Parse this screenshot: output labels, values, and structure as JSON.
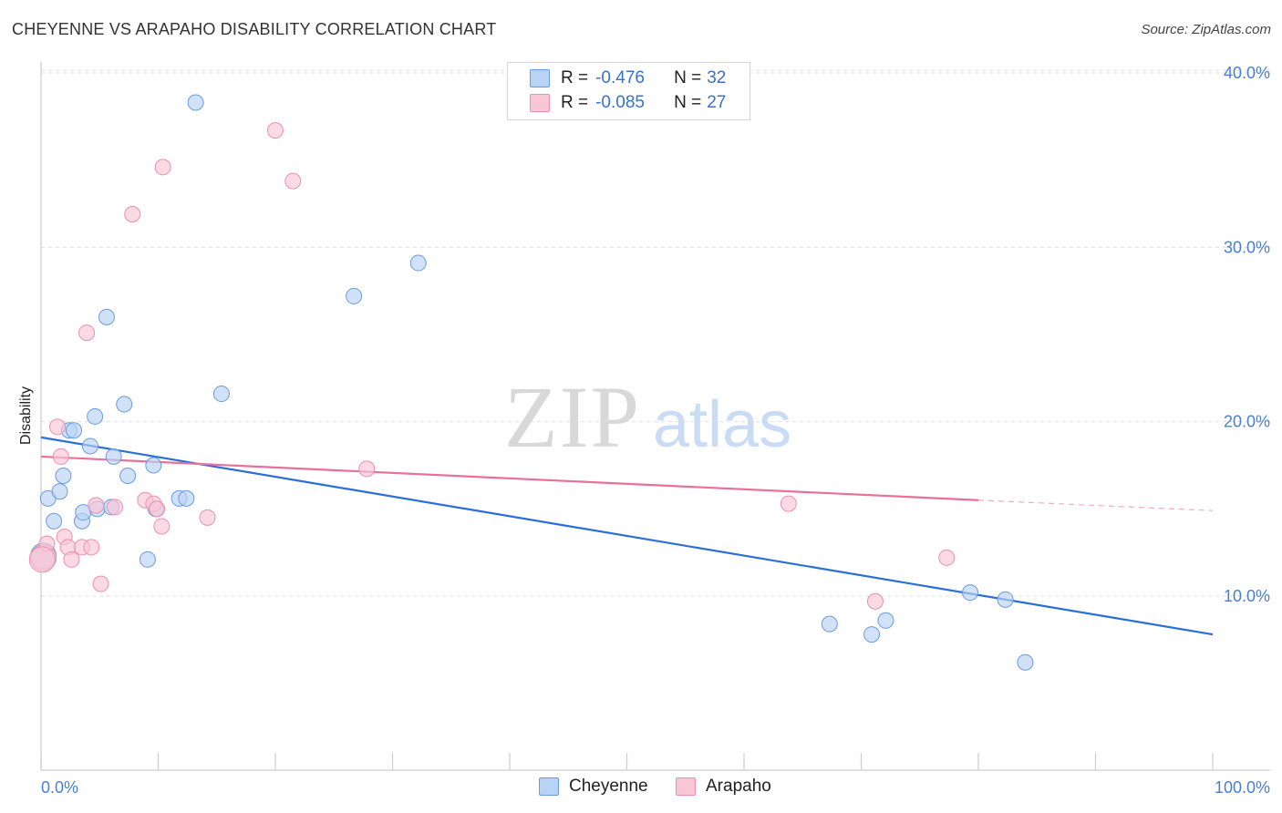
{
  "header": {
    "title": "CHEYENNE VS ARAPAHO DISABILITY CORRELATION CHART",
    "source": "Source: ZipAtlas.com"
  },
  "watermark": {
    "zip": "ZIP",
    "atlas": "atlas"
  },
  "colors": {
    "cheyenne_fill": "#b9d3f5",
    "cheyenne_stroke": "#6a9be0",
    "cheyenne_line": "#2a6fd6",
    "arapaho_fill": "#f9c6d6",
    "arapaho_stroke": "#ec8fae",
    "arapaho_line": "#e8709a",
    "tick_text": "#4a7fd0",
    "grid": "#dddddd"
  },
  "legend": {
    "rows": [
      {
        "r_label": "R =",
        "r_value": "-0.476",
        "n_label": "N =",
        "n_value": "32"
      },
      {
        "r_label": "R =",
        "r_value": "-0.085",
        "n_label": "N =",
        "n_value": "27"
      }
    ]
  },
  "bottom_legend": {
    "cheyenne": "Cheyenne",
    "arapaho": "Arapaho"
  },
  "chart_data": {
    "type": "scatter",
    "ylabel": "Disability",
    "xlim": [
      0,
      100
    ],
    "ylim": [
      0,
      42
    ],
    "x_tick_labels": {
      "left": "0.0%",
      "right": "100.0%"
    },
    "y_ticks": [
      {
        "value": 10,
        "label": "10.0%"
      },
      {
        "value": 20,
        "label": "20.0%"
      },
      {
        "value": 30,
        "label": "30.0%"
      },
      {
        "value": 40,
        "label": "40.0%"
      }
    ],
    "grid": true,
    "legend_position": "top-center",
    "series": [
      {
        "name": "Cheyenne",
        "points": [
          [
            0.2,
            12.3
          ],
          [
            0.6,
            15.6
          ],
          [
            1.1,
            14.3
          ],
          [
            1.6,
            16.0
          ],
          [
            1.9,
            16.9
          ],
          [
            2.4,
            19.5
          ],
          [
            2.8,
            19.5
          ],
          [
            3.5,
            14.3
          ],
          [
            3.6,
            14.8
          ],
          [
            4.2,
            18.6
          ],
          [
            4.6,
            20.3
          ],
          [
            4.8,
            15.0
          ],
          [
            5.6,
            26.0
          ],
          [
            6.0,
            15.1
          ],
          [
            6.2,
            18.0
          ],
          [
            7.1,
            21.0
          ],
          [
            7.4,
            16.9
          ],
          [
            9.1,
            12.1
          ],
          [
            9.6,
            17.5
          ],
          [
            9.8,
            15.0
          ],
          [
            11.8,
            15.6
          ],
          [
            12.4,
            15.6
          ],
          [
            13.2,
            38.3
          ],
          [
            15.4,
            21.6
          ],
          [
            26.7,
            27.2
          ],
          [
            32.2,
            29.1
          ],
          [
            67.3,
            8.4
          ],
          [
            70.9,
            7.8
          ],
          [
            72.1,
            8.6
          ],
          [
            79.3,
            10.2
          ],
          [
            82.3,
            9.8
          ],
          [
            84.0,
            6.2
          ]
        ],
        "trend": {
          "x": [
            0,
            100
          ],
          "y": [
            19.1,
            7.8
          ]
        }
      },
      {
        "name": "Arapaho",
        "points": [
          [
            0.2,
            12.2
          ],
          [
            0.5,
            13.0
          ],
          [
            1.4,
            19.7
          ],
          [
            1.7,
            18.0
          ],
          [
            2.0,
            13.4
          ],
          [
            2.3,
            12.8
          ],
          [
            2.6,
            12.1
          ],
          [
            3.5,
            12.8
          ],
          [
            3.9,
            25.1
          ],
          [
            4.3,
            12.8
          ],
          [
            4.7,
            15.2
          ],
          [
            5.1,
            10.7
          ],
          [
            6.3,
            15.1
          ],
          [
            7.8,
            31.9
          ],
          [
            8.9,
            15.5
          ],
          [
            9.6,
            15.3
          ],
          [
            9.9,
            15.0
          ],
          [
            10.3,
            14.0
          ],
          [
            10.4,
            34.6
          ],
          [
            14.2,
            14.5
          ],
          [
            20.0,
            36.7
          ],
          [
            21.5,
            33.8
          ],
          [
            27.8,
            17.3
          ],
          [
            63.8,
            15.3
          ],
          [
            71.2,
            9.7
          ],
          [
            77.3,
            12.2
          ],
          [
            0.1,
            12.1
          ]
        ],
        "trend": {
          "x": [
            0,
            80
          ],
          "y": [
            18.0,
            15.5
          ],
          "dashed_to": [
            100,
            14.9
          ]
        }
      }
    ]
  }
}
